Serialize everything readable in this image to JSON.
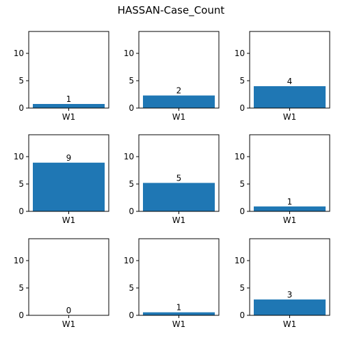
{
  "figure": {
    "title": "HASSAN-Case_Count"
  },
  "colors": {
    "bar": "#1f77b4",
    "axis": "#000000",
    "background": "#ffffff"
  },
  "chart_data": [
    {
      "type": "bar",
      "categories": [
        "W1"
      ],
      "values": [
        0.75
      ],
      "data_labels": [
        "1"
      ],
      "ylim": [
        0,
        14
      ],
      "yticks": [
        "0",
        "5",
        "10"
      ],
      "grid": false
    },
    {
      "type": "bar",
      "categories": [
        "W1"
      ],
      "values": [
        2.3
      ],
      "data_labels": [
        "2"
      ],
      "ylim": [
        0,
        14
      ],
      "yticks": [
        "0",
        "5",
        "10"
      ],
      "grid": false
    },
    {
      "type": "bar",
      "categories": [
        "W1"
      ],
      "values": [
        4.0
      ],
      "data_labels": [
        "4"
      ],
      "ylim": [
        0,
        14
      ],
      "yticks": [
        "0",
        "5",
        "10"
      ],
      "grid": false
    },
    {
      "type": "bar",
      "categories": [
        "W1"
      ],
      "values": [
        8.9
      ],
      "data_labels": [
        "9"
      ],
      "ylim": [
        0,
        14
      ],
      "yticks": [
        "0",
        "5",
        "10"
      ],
      "grid": false
    },
    {
      "type": "bar",
      "categories": [
        "W1"
      ],
      "values": [
        5.2
      ],
      "data_labels": [
        "5"
      ],
      "ylim": [
        0,
        14
      ],
      "yticks": [
        "0",
        "5",
        "10"
      ],
      "grid": false
    },
    {
      "type": "bar",
      "categories": [
        "W1"
      ],
      "values": [
        0.9
      ],
      "data_labels": [
        "1"
      ],
      "ylim": [
        0,
        14
      ],
      "yticks": [
        "0",
        "5",
        "10"
      ],
      "grid": false
    },
    {
      "type": "bar",
      "categories": [
        "W1"
      ],
      "values": [
        0
      ],
      "data_labels": [
        "0"
      ],
      "ylim": [
        0,
        14
      ],
      "yticks": [
        "0",
        "5",
        "10"
      ],
      "grid": false
    },
    {
      "type": "bar",
      "categories": [
        "W1"
      ],
      "values": [
        0.55
      ],
      "data_labels": [
        "1"
      ],
      "ylim": [
        0,
        14
      ],
      "yticks": [
        "0",
        "5",
        "10"
      ],
      "grid": false
    },
    {
      "type": "bar",
      "categories": [
        "W1"
      ],
      "values": [
        2.9
      ],
      "data_labels": [
        "3"
      ],
      "ylim": [
        0,
        14
      ],
      "yticks": [
        "0",
        "5",
        "10"
      ],
      "grid": false
    }
  ]
}
